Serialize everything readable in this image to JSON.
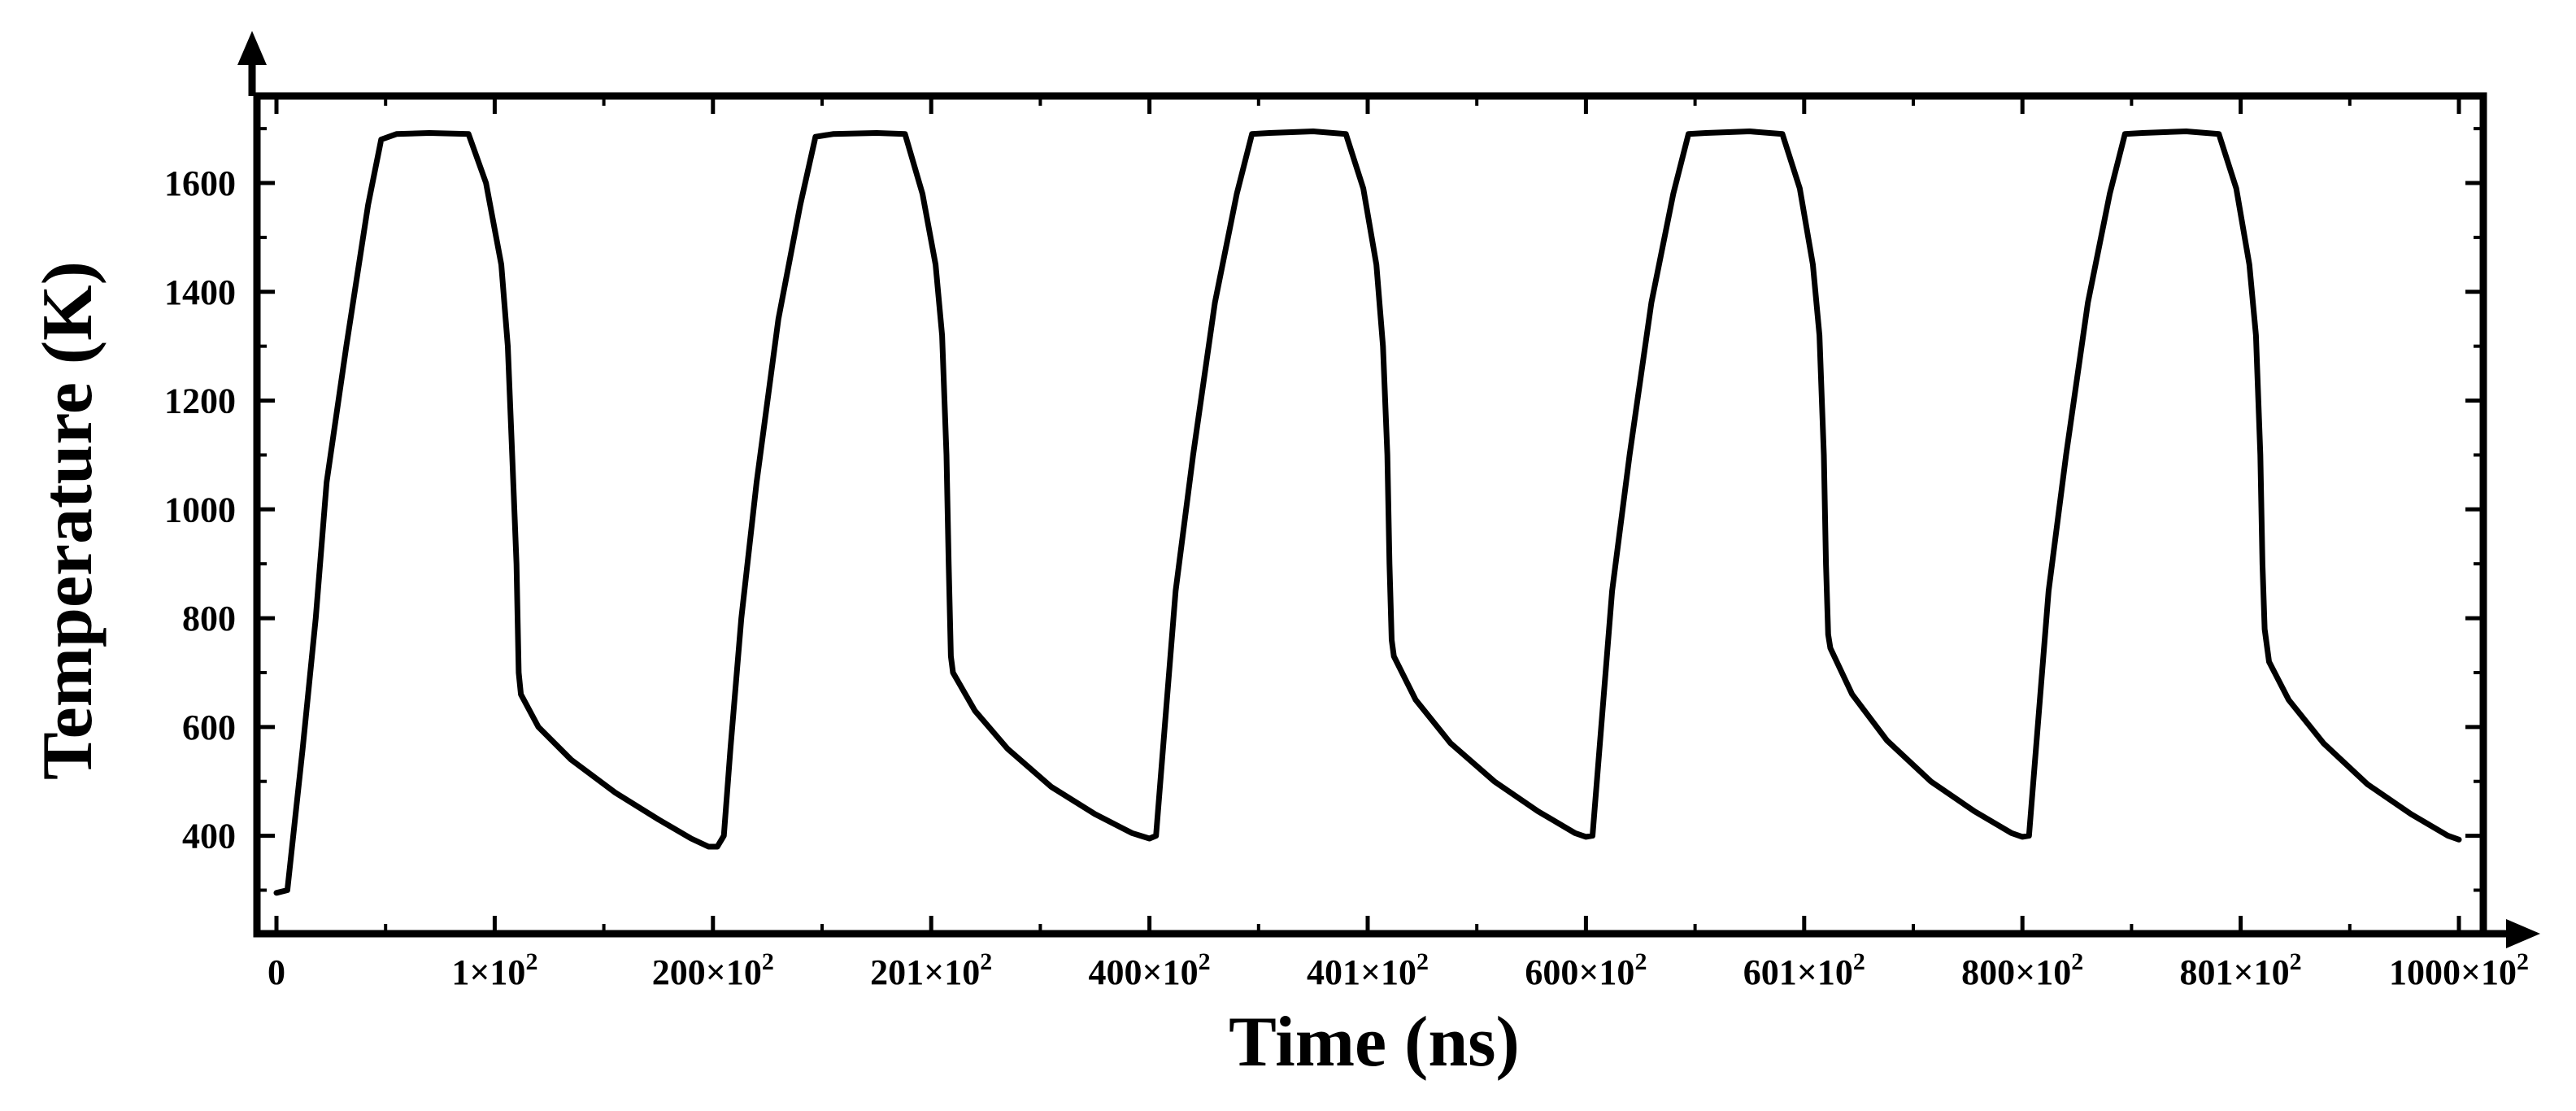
{
  "chart_data": {
    "type": "line",
    "title": "",
    "xlabel": "Time (ns)",
    "ylabel": "Temperature (K)",
    "ylim": [
      220,
      1760
    ],
    "grid": false,
    "legend": "none",
    "x_tick_labels": [
      "0",
      "1×10",
      "200×10",
      "201×10",
      "400×10",
      "401×10",
      "600×10",
      "601×10",
      "800×10",
      "801×10",
      "1000×10"
    ],
    "x_tick_exponent": "2",
    "y_ticks": [
      400,
      600,
      800,
      1000,
      1200,
      1400,
      1600
    ],
    "x_axis_note": "Broken (non-linear) time axis: each labeled tick spaced equally",
    "series": [
      {
        "name": "Temperature",
        "color": "#000000",
        "points": [
          [
            0.0,
            295
          ],
          [
            0.05,
            300
          ],
          [
            0.12,
            560
          ],
          [
            0.18,
            800
          ],
          [
            0.23,
            1050
          ],
          [
            0.32,
            1300
          ],
          [
            0.42,
            1560
          ],
          [
            0.48,
            1680
          ],
          [
            0.55,
            1690
          ],
          [
            0.7,
            1692
          ],
          [
            0.88,
            1690
          ],
          [
            0.96,
            1600
          ],
          [
            1.03,
            1450
          ],
          [
            1.06,
            1300
          ],
          [
            1.08,
            1100
          ],
          [
            1.1,
            900
          ],
          [
            1.11,
            700
          ],
          [
            1.12,
            660
          ],
          [
            1.2,
            600
          ],
          [
            1.35,
            540
          ],
          [
            1.55,
            480
          ],
          [
            1.75,
            430
          ],
          [
            1.9,
            395
          ],
          [
            1.98,
            380
          ],
          [
            2.02,
            380
          ],
          [
            2.05,
            400
          ],
          [
            2.08,
            560
          ],
          [
            2.13,
            800
          ],
          [
            2.2,
            1050
          ],
          [
            2.3,
            1350
          ],
          [
            2.4,
            1560
          ],
          [
            2.47,
            1685
          ],
          [
            2.55,
            1690
          ],
          [
            2.75,
            1692
          ],
          [
            2.88,
            1690
          ],
          [
            2.96,
            1580
          ],
          [
            3.02,
            1450
          ],
          [
            3.05,
            1320
          ],
          [
            3.07,
            1100
          ],
          [
            3.08,
            900
          ],
          [
            3.09,
            730
          ],
          [
            3.1,
            700
          ],
          [
            3.2,
            630
          ],
          [
            3.35,
            560
          ],
          [
            3.55,
            490
          ],
          [
            3.75,
            440
          ],
          [
            3.92,
            405
          ],
          [
            4.0,
            395
          ],
          [
            4.03,
            400
          ],
          [
            4.07,
            600
          ],
          [
            4.12,
            850
          ],
          [
            4.2,
            1100
          ],
          [
            4.3,
            1380
          ],
          [
            4.4,
            1580
          ],
          [
            4.47,
            1690
          ],
          [
            4.55,
            1692
          ],
          [
            4.75,
            1695
          ],
          [
            4.9,
            1690
          ],
          [
            4.98,
            1590
          ],
          [
            5.04,
            1450
          ],
          [
            5.07,
            1300
          ],
          [
            5.09,
            1100
          ],
          [
            5.1,
            900
          ],
          [
            5.11,
            760
          ],
          [
            5.12,
            730
          ],
          [
            5.22,
            650
          ],
          [
            5.38,
            570
          ],
          [
            5.58,
            500
          ],
          [
            5.78,
            445
          ],
          [
            5.95,
            405
          ],
          [
            6.0,
            398
          ],
          [
            6.03,
            400
          ],
          [
            6.07,
            600
          ],
          [
            6.12,
            850
          ],
          [
            6.2,
            1100
          ],
          [
            6.3,
            1380
          ],
          [
            6.4,
            1580
          ],
          [
            6.47,
            1690
          ],
          [
            6.55,
            1692
          ],
          [
            6.75,
            1695
          ],
          [
            6.9,
            1690
          ],
          [
            6.98,
            1590
          ],
          [
            7.04,
            1450
          ],
          [
            7.07,
            1320
          ],
          [
            7.09,
            1100
          ],
          [
            7.1,
            900
          ],
          [
            7.11,
            770
          ],
          [
            7.12,
            745
          ],
          [
            7.22,
            660
          ],
          [
            7.38,
            575
          ],
          [
            7.58,
            500
          ],
          [
            7.78,
            445
          ],
          [
            7.95,
            405
          ],
          [
            8.0,
            398
          ],
          [
            8.03,
            400
          ],
          [
            8.07,
            600
          ],
          [
            8.12,
            850
          ],
          [
            8.2,
            1100
          ],
          [
            8.3,
            1380
          ],
          [
            8.4,
            1580
          ],
          [
            8.47,
            1690
          ],
          [
            8.55,
            1692
          ],
          [
            8.75,
            1695
          ],
          [
            8.9,
            1690
          ],
          [
            8.98,
            1590
          ],
          [
            9.04,
            1450
          ],
          [
            9.07,
            1320
          ],
          [
            9.09,
            1100
          ],
          [
            9.1,
            900
          ],
          [
            9.11,
            780
          ],
          [
            9.13,
            720
          ],
          [
            9.22,
            650
          ],
          [
            9.38,
            570
          ],
          [
            9.58,
            495
          ],
          [
            9.78,
            440
          ],
          [
            9.95,
            400
          ],
          [
            10.0,
            393
          ]
        ]
      }
    ]
  }
}
